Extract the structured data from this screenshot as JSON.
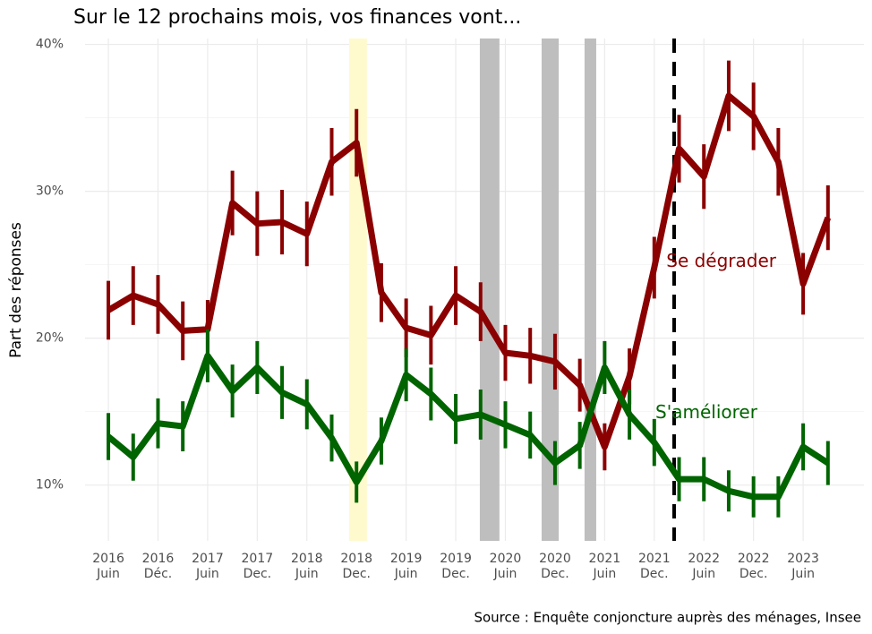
{
  "chart_data": {
    "type": "line",
    "title": "Sur le 12 prochains mois, vos finances vont...",
    "y_label": "Part des réponses",
    "caption": "Source : Enquête conjoncture auprès des ménages, Insee",
    "x": [
      0,
      1,
      2,
      3,
      4,
      5,
      6,
      7,
      8,
      9,
      10,
      11,
      12,
      13,
      14,
      15,
      16,
      17,
      18,
      19,
      20,
      21,
      22,
      23,
      24,
      25,
      26,
      27,
      28,
      29
    ],
    "series": [
      {
        "name": "Se dégrader",
        "color": "#8b0000",
        "values": [
          21.9,
          22.9,
          22.3,
          20.5,
          20.6,
          29.2,
          27.8,
          27.9,
          27.1,
          32.0,
          33.3,
          23.1,
          20.7,
          20.2,
          22.9,
          21.8,
          19.0,
          18.8,
          18.4,
          16.8,
          12.6,
          17.4,
          24.8,
          32.9,
          31.0,
          36.5,
          35.1,
          32.0,
          23.7,
          28.2
        ],
        "errors": [
          2.0,
          2.0,
          2.0,
          2.0,
          2.0,
          2.2,
          2.2,
          2.2,
          2.2,
          2.3,
          2.3,
          2.0,
          2.0,
          2.0,
          2.0,
          2.0,
          1.9,
          1.9,
          1.9,
          1.8,
          1.6,
          1.9,
          2.1,
          2.3,
          2.2,
          2.4,
          2.3,
          2.3,
          2.1,
          2.2
        ],
        "label_pos": [
          24.7,
          25.2
        ]
      },
      {
        "name": "S'améliorer",
        "color": "#006400",
        "values": [
          13.3,
          11.9,
          14.2,
          14.0,
          18.8,
          16.4,
          18.0,
          16.3,
          15.5,
          13.2,
          10.2,
          13.0,
          17.5,
          16.2,
          14.5,
          14.8,
          14.1,
          13.4,
          11.5,
          12.7,
          18.0,
          14.8,
          12.9,
          10.4,
          10.4,
          9.6,
          9.2,
          9.2,
          12.6,
          11.5
        ],
        "errors": [
          1.6,
          1.6,
          1.7,
          1.7,
          1.8,
          1.8,
          1.8,
          1.8,
          1.7,
          1.6,
          1.4,
          1.6,
          1.8,
          1.8,
          1.7,
          1.7,
          1.6,
          1.6,
          1.5,
          1.6,
          1.8,
          1.7,
          1.6,
          1.5,
          1.5,
          1.4,
          1.4,
          1.4,
          1.6,
          1.5
        ],
        "label_pos": [
          24.1,
          14.9
        ]
      }
    ],
    "shaded": [
      {
        "range": [
          9.7,
          10.42
        ],
        "color": "#fffacd"
      },
      {
        "range": [
          14.97,
          15.76
        ],
        "color": "#bebebe"
      },
      {
        "range": [
          17.46,
          18.15
        ],
        "color": "#bebebe"
      },
      {
        "range": [
          19.19,
          19.66
        ],
        "color": "#bebebe"
      }
    ],
    "vline": 22.8,
    "xlim": [
      -0.94,
      30.45
    ],
    "xticks": [
      {
        "value": 0,
        "label": "2016\nJuin"
      },
      {
        "value": 2,
        "label": "2016\nDéc."
      },
      {
        "value": 4,
        "label": "2017\nJuin"
      },
      {
        "value": 6,
        "label": "2017\nDec."
      },
      {
        "value": 8,
        "label": "2018\nJuin"
      },
      {
        "value": 10,
        "label": "2018\nDec."
      },
      {
        "value": 12,
        "label": "2019\nJuin"
      },
      {
        "value": 14,
        "label": "2019\nDec."
      },
      {
        "value": 16,
        "label": "2020\nJuin"
      },
      {
        "value": 18,
        "label": "2020\nDec."
      },
      {
        "value": 20,
        "label": "2021\nJuin"
      },
      {
        "value": 22,
        "label": "2021\nDec."
      },
      {
        "value": 24,
        "label": "2022\nJuin"
      },
      {
        "value": 26,
        "label": "2022\nDec."
      },
      {
        "value": 28,
        "label": "2023\nJuin"
      }
    ],
    "ylim": [
      6.2,
      40.4
    ],
    "yticks": [
      {
        "value": 10,
        "label": "10%"
      },
      {
        "value": 20,
        "label": "20%"
      },
      {
        "value": 30,
        "label": "30%"
      },
      {
        "value": 40,
        "label": "40%"
      }
    ],
    "grid": true
  }
}
